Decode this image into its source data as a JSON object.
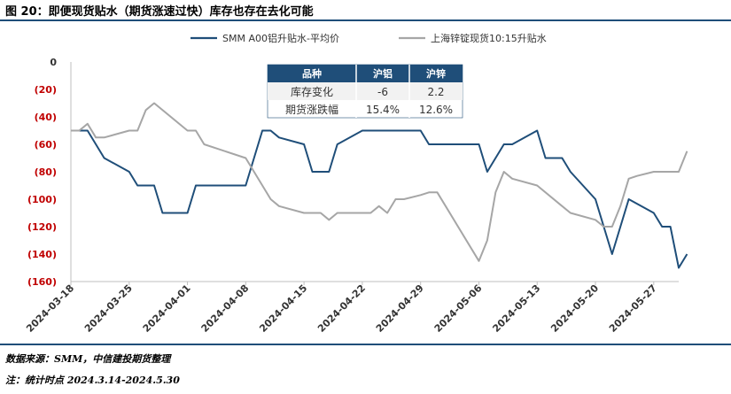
{
  "title": "图 20：即便现货贴水（期货涨速过快）库存也存在去化可能",
  "source": "数据来源：SMM，中信建投期货整理",
  "note": "注：统计时点 2024.3.14-2024.5.30",
  "colors": {
    "al": "#1f4e79",
    "zn": "#a6a6a6",
    "neg": "#c00000",
    "pos": "#00a050",
    "header": "#1f4e79"
  },
  "table": {
    "headers": [
      "品种",
      "沪铝",
      "沪锌"
    ],
    "rows": [
      {
        "label": "库存变化",
        "al": "-6",
        "zn": "2.2"
      },
      {
        "label": "期货涨跌幅",
        "al": "15.4%",
        "zn": "12.6%"
      }
    ]
  },
  "chart_data": {
    "type": "line",
    "x_start": "2024-03-18",
    "x_end": "2024-05-30",
    "ylim": [
      -160,
      0
    ],
    "yticks": [
      0,
      -20,
      -40,
      -60,
      -80,
      -100,
      -120,
      -140,
      -160
    ],
    "ytick_labels": [
      "0",
      "(20)",
      "(40)",
      "(60)",
      "(80)",
      "(100)",
      "(120)",
      "(140)",
      "(160)"
    ],
    "xticks": [
      "2024-03-18",
      "2024-03-25",
      "2024-04-01",
      "2024-04-08",
      "2024-04-15",
      "2024-04-22",
      "2024-04-29",
      "2024-05-06",
      "2024-05-13",
      "2024-05-20",
      "2024-05-27"
    ],
    "legend_position": "top",
    "series": [
      {
        "name": "SMM A00铝升贴水-平均价",
        "points": [
          [
            "2024-03-18",
            -50
          ],
          [
            "2024-03-19",
            -50
          ],
          [
            "2024-03-20",
            -50
          ],
          [
            "2024-03-21",
            -60
          ],
          [
            "2024-03-22",
            -70
          ],
          [
            "2024-03-25",
            -80
          ],
          [
            "2024-03-26",
            -90
          ],
          [
            "2024-03-27",
            -90
          ],
          [
            "2024-03-28",
            -90
          ],
          [
            "2024-03-29",
            -110
          ],
          [
            "2024-04-01",
            -110
          ],
          [
            "2024-04-02",
            -90
          ],
          [
            "2024-04-03",
            -90
          ],
          [
            "2024-04-08",
            -90
          ],
          [
            "2024-04-09",
            -70
          ],
          [
            "2024-04-10",
            -50
          ],
          [
            "2024-04-11",
            -50
          ],
          [
            "2024-04-12",
            -55
          ],
          [
            "2024-04-15",
            -60
          ],
          [
            "2024-04-16",
            -80
          ],
          [
            "2024-04-17",
            -80
          ],
          [
            "2024-04-18",
            -80
          ],
          [
            "2024-04-19",
            -60
          ],
          [
            "2024-04-22",
            -50
          ],
          [
            "2024-04-23",
            -50
          ],
          [
            "2024-04-24",
            -50
          ],
          [
            "2024-04-25",
            -50
          ],
          [
            "2024-04-26",
            -50
          ],
          [
            "2024-04-29",
            -50
          ],
          [
            "2024-04-30",
            -60
          ],
          [
            "2024-05-06",
            -60
          ],
          [
            "2024-05-07",
            -80
          ],
          [
            "2024-05-08",
            -70
          ],
          [
            "2024-05-09",
            -60
          ],
          [
            "2024-05-10",
            -60
          ],
          [
            "2024-05-13",
            -50
          ],
          [
            "2024-05-14",
            -70
          ],
          [
            "2024-05-15",
            -70
          ],
          [
            "2024-05-16",
            -70
          ],
          [
            "2024-05-17",
            -80
          ],
          [
            "2024-05-20",
            -100
          ],
          [
            "2024-05-21",
            -120
          ],
          [
            "2024-05-22",
            -140
          ],
          [
            "2024-05-23",
            -120
          ],
          [
            "2024-05-24",
            -100
          ],
          [
            "2024-05-27",
            -110
          ],
          [
            "2024-05-28",
            -120
          ],
          [
            "2024-05-29",
            -120
          ],
          [
            "2024-05-30",
            -150
          ],
          [
            "2024-05-31",
            -140
          ]
        ]
      },
      {
        "name": "上海锌锭现货10:15升贴水",
        "points": [
          [
            "2024-03-18",
            -50
          ],
          [
            "2024-03-19",
            -50
          ],
          [
            "2024-03-20",
            -45
          ],
          [
            "2024-03-21",
            -55
          ],
          [
            "2024-03-22",
            -55
          ],
          [
            "2024-03-25",
            -50
          ],
          [
            "2024-03-26",
            -50
          ],
          [
            "2024-03-27",
            -35
          ],
          [
            "2024-03-28",
            -30
          ],
          [
            "2024-04-01",
            -50
          ],
          [
            "2024-04-02",
            -50
          ],
          [
            "2024-04-03",
            -60
          ],
          [
            "2024-04-08",
            -70
          ],
          [
            "2024-04-09",
            -80
          ],
          [
            "2024-04-11",
            -100
          ],
          [
            "2024-04-12",
            -105
          ],
          [
            "2024-04-15",
            -110
          ],
          [
            "2024-04-16",
            -110
          ],
          [
            "2024-04-17",
            -110
          ],
          [
            "2024-04-18",
            -115
          ],
          [
            "2024-04-19",
            -110
          ],
          [
            "2024-04-22",
            -110
          ],
          [
            "2024-04-23",
            -110
          ],
          [
            "2024-04-24",
            -105
          ],
          [
            "2024-04-25",
            -110
          ],
          [
            "2024-04-26",
            -100
          ],
          [
            "2024-04-27",
            -100
          ],
          [
            "2024-04-29",
            -97
          ],
          [
            "2024-04-30",
            -95
          ],
          [
            "2024-05-01",
            -95
          ],
          [
            "2024-05-06",
            -145
          ],
          [
            "2024-05-07",
            -130
          ],
          [
            "2024-05-08",
            -95
          ],
          [
            "2024-05-09",
            -80
          ],
          [
            "2024-05-10",
            -85
          ],
          [
            "2024-05-13",
            -90
          ],
          [
            "2024-05-16",
            -105
          ],
          [
            "2024-05-17",
            -110
          ],
          [
            "2024-05-20",
            -115
          ],
          [
            "2024-05-21",
            -120
          ],
          [
            "2024-05-22",
            -120
          ],
          [
            "2024-05-23",
            -105
          ],
          [
            "2024-05-24",
            -85
          ],
          [
            "2024-05-25",
            -83
          ],
          [
            "2024-05-27",
            -80
          ],
          [
            "2024-05-28",
            -80
          ],
          [
            "2024-05-29",
            -80
          ],
          [
            "2024-05-30",
            -80
          ],
          [
            "2024-05-31",
            -65
          ]
        ]
      }
    ]
  }
}
